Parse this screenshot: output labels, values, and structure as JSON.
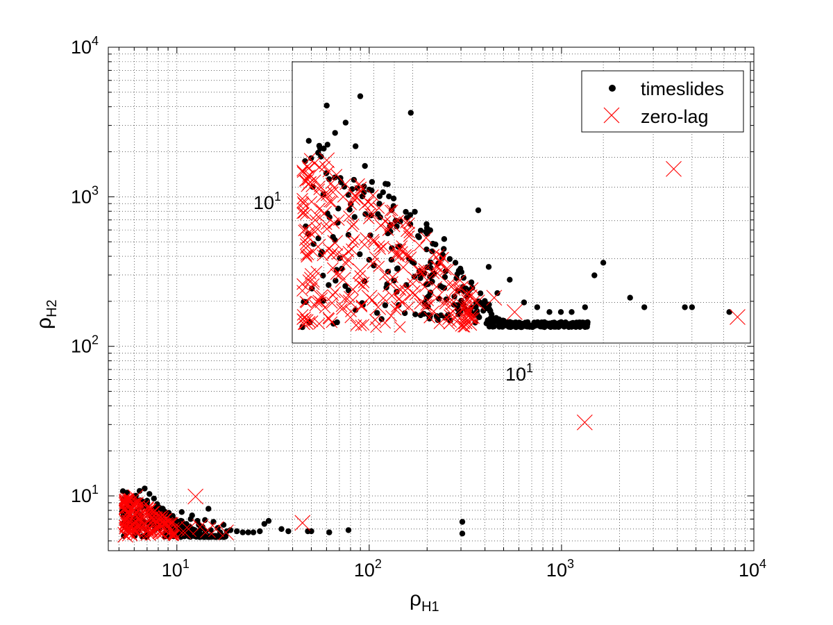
{
  "colors": {
    "timeslides": "#000000",
    "zero_lag": "#ff0000",
    "grid": "#000000",
    "background": "#ffffff"
  },
  "chart_data": [
    {
      "type": "scatter",
      "scale": "log-log",
      "grid": true,
      "legend": "top-right",
      "xlabel": {
        "base": "ρ",
        "sub": "H1"
      },
      "ylabel": {
        "base": "ρ",
        "sub": "H2"
      },
      "xlim": [
        4.4,
        10000
      ],
      "ylim": [
        4.3,
        10000
      ],
      "x_ticks": [
        {
          "base": "10",
          "exp": "1",
          "value": 10
        },
        {
          "base": "10",
          "exp": "2",
          "value": 100
        },
        {
          "base": "10",
          "exp": "3",
          "value": 1000
        },
        {
          "base": "10",
          "exp": "4",
          "value": 10000
        }
      ],
      "y_ticks": [
        {
          "base": "10",
          "exp": "1",
          "value": 10
        },
        {
          "base": "10",
          "exp": "2",
          "value": 100
        },
        {
          "base": "10",
          "exp": "3",
          "value": 1000
        },
        {
          "base": "10",
          "exp": "4",
          "value": 10000
        }
      ],
      "series": [
        {
          "name": "timeslides",
          "marker": "dot",
          "color": "#000000",
          "points": [
            [
              5.3,
              5.4
            ],
            [
              5.6,
              6.2
            ],
            [
              5.9,
              7.0
            ],
            [
              6.2,
              8.0
            ],
            [
              6.6,
              9.2
            ],
            [
              5.5,
              10.5
            ],
            [
              6.4,
              10.8
            ],
            [
              7.2,
              10.3
            ],
            [
              6.8,
              11.2
            ],
            [
              7.6,
              9.6
            ],
            [
              7.9,
              8.8
            ],
            [
              8.3,
              8.0
            ],
            [
              8.8,
              7.6
            ],
            [
              9.2,
              7.2
            ],
            [
              9.8,
              6.9
            ],
            [
              10.4,
              6.6
            ],
            [
              11.2,
              6.5
            ],
            [
              12.0,
              7.4
            ],
            [
              12.8,
              6.8
            ],
            [
              13.6,
              6.2
            ],
            [
              14.6,
              8.2
            ],
            [
              15.5,
              6.7
            ],
            [
              16.3,
              6.1
            ],
            [
              17.5,
              6.4
            ],
            [
              19.0,
              5.9
            ],
            [
              20.5,
              5.8
            ],
            [
              22.0,
              5.7
            ],
            [
              23.5,
              5.7
            ],
            [
              25.0,
              5.7
            ],
            [
              27.0,
              5.8
            ],
            [
              28.5,
              6.5
            ],
            [
              30.0,
              6.8
            ],
            [
              35.0,
              6.0
            ],
            [
              38.0,
              5.8
            ],
            [
              48.0,
              5.8
            ],
            [
              50.0,
              5.8
            ],
            [
              62.0,
              5.7
            ],
            [
              78.0,
              5.9
            ],
            [
              305.0,
              6.7
            ],
            [
              305.0,
              5.6
            ],
            [
              6.0,
              6.2
            ],
            [
              6.3,
              5.8
            ],
            [
              6.9,
              6.0
            ],
            [
              7.4,
              6.4
            ],
            [
              8.1,
              6.9
            ],
            [
              9.0,
              5.9
            ],
            [
              9.5,
              6.2
            ],
            [
              10.1,
              6.0
            ],
            [
              10.8,
              5.8
            ],
            [
              11.6,
              6.0
            ],
            [
              12.4,
              5.9
            ],
            [
              13.3,
              6.0
            ],
            [
              14.1,
              5.8
            ],
            [
              15.0,
              5.9
            ],
            [
              16.8,
              5.7
            ],
            [
              18.2,
              5.8
            ],
            [
              5.8,
              8.6
            ],
            [
              6.1,
              9.7
            ],
            [
              7.0,
              9.0
            ],
            [
              7.8,
              7.6
            ],
            [
              8.5,
              7.0
            ],
            [
              9.4,
              6.4
            ],
            [
              10.6,
              7.8
            ],
            [
              11.8,
              7.0
            ],
            [
              13.0,
              6.4
            ],
            [
              14.0,
              6.9
            ],
            [
              5.4,
              7.8
            ],
            [
              5.7,
              9.0
            ],
            [
              6.5,
              7.4
            ],
            [
              7.3,
              6.8
            ]
          ]
        },
        {
          "name": "zero-lag",
          "marker": "x",
          "color": "#ff0000",
          "points": [
            [
              5.4,
              5.5
            ],
            [
              5.6,
              6.4
            ],
            [
              5.8,
              7.2
            ],
            [
              6.0,
              8.1
            ],
            [
              5.5,
              9.0
            ],
            [
              6.1,
              9.8
            ],
            [
              6.4,
              7.3
            ],
            [
              6.7,
              6.4
            ],
            [
              7.0,
              5.9
            ],
            [
              7.4,
              6.6
            ],
            [
              7.8,
              6.0
            ],
            [
              8.2,
              5.8
            ],
            [
              8.8,
              6.3
            ],
            [
              9.4,
              5.9
            ],
            [
              10.0,
              6.1
            ],
            [
              10.8,
              5.8
            ],
            [
              11.5,
              6.0
            ],
            [
              12.5,
              9.9
            ],
            [
              13.2,
              6.2
            ],
            [
              14.5,
              5.9
            ],
            [
              16.0,
              6.0
            ],
            [
              18.0,
              5.7
            ],
            [
              45.0,
              6.6
            ],
            [
              1320.0,
              31.0
            ],
            [
              5.9,
              6.0
            ],
            [
              6.3,
              5.7
            ],
            [
              5.7,
              5.6
            ],
            [
              6.8,
              7.6
            ],
            [
              7.6,
              7.0
            ],
            [
              8.6,
              6.8
            ]
          ]
        }
      ],
      "inset": {
        "grid": true,
        "x_ticks": [
          {
            "base": "10",
            "exp": "1"
          }
        ],
        "y_ticks": [
          {
            "base": "10",
            "exp": "1"
          }
        ],
        "timeslides_points": [
          [
            5.3,
            5.5
          ],
          [
            5.6,
            6.3
          ],
          [
            5.9,
            7.1
          ],
          [
            6.2,
            8.1
          ],
          [
            6.6,
            9.3
          ],
          [
            5.5,
            10.6
          ],
          [
            6.4,
            10.9
          ],
          [
            7.2,
            10.4
          ],
          [
            6.8,
            11.3
          ],
          [
            7.6,
            9.7
          ],
          [
            7.9,
            8.9
          ],
          [
            8.3,
            8.1
          ],
          [
            8.8,
            7.7
          ],
          [
            9.2,
            7.3
          ],
          [
            9.8,
            7.0
          ],
          [
            10.4,
            6.7
          ],
          [
            11.2,
            6.6
          ],
          [
            12.0,
            7.5
          ],
          [
            12.8,
            6.9
          ],
          [
            13.6,
            6.3
          ],
          [
            14.6,
            8.3
          ],
          [
            15.5,
            6.8
          ],
          [
            16.3,
            6.2
          ],
          [
            17.5,
            6.5
          ],
          [
            19.0,
            6.0
          ],
          [
            20.5,
            5.9
          ],
          [
            22.0,
            5.8
          ],
          [
            23.5,
            5.8
          ],
          [
            25.0,
            5.8
          ],
          [
            27.0,
            5.9
          ],
          [
            28.5,
            6.6
          ],
          [
            30.0,
            6.9
          ],
          [
            35.0,
            6.1
          ],
          [
            38.0,
            5.9
          ],
          [
            48.0,
            5.9
          ],
          [
            50.0,
            5.9
          ],
          [
            62.0,
            5.8
          ],
          [
            6.1,
            12.0
          ],
          [
            7.4,
            12.4
          ],
          [
            9.9,
            11.7
          ]
        ],
        "zero_lag_points": [
          [
            5.4,
            5.6
          ],
          [
            5.6,
            6.5
          ],
          [
            5.8,
            7.3
          ],
          [
            6.0,
            8.2
          ],
          [
            5.5,
            9.1
          ],
          [
            6.1,
            9.9
          ],
          [
            6.4,
            7.4
          ],
          [
            6.7,
            6.5
          ],
          [
            7.0,
            6.0
          ],
          [
            7.4,
            6.7
          ],
          [
            7.8,
            6.1
          ],
          [
            8.2,
            5.9
          ],
          [
            8.8,
            6.4
          ],
          [
            9.4,
            6.0
          ],
          [
            10.0,
            6.2
          ],
          [
            10.8,
            5.9
          ],
          [
            11.5,
            6.1
          ],
          [
            13.2,
            6.3
          ],
          [
            14.5,
            6.0
          ],
          [
            16.0,
            6.1
          ],
          [
            18.0,
            5.8
          ],
          [
            45.0,
            9.6
          ],
          [
            65.0,
            5.7
          ],
          [
            7.2,
            8.7
          ],
          [
            8.9,
            7.9
          ]
        ]
      },
      "legend_entries": [
        {
          "label": "timeslides",
          "marker": "dot"
        },
        {
          "label": "zero-lag",
          "marker": "x"
        }
      ]
    }
  ]
}
